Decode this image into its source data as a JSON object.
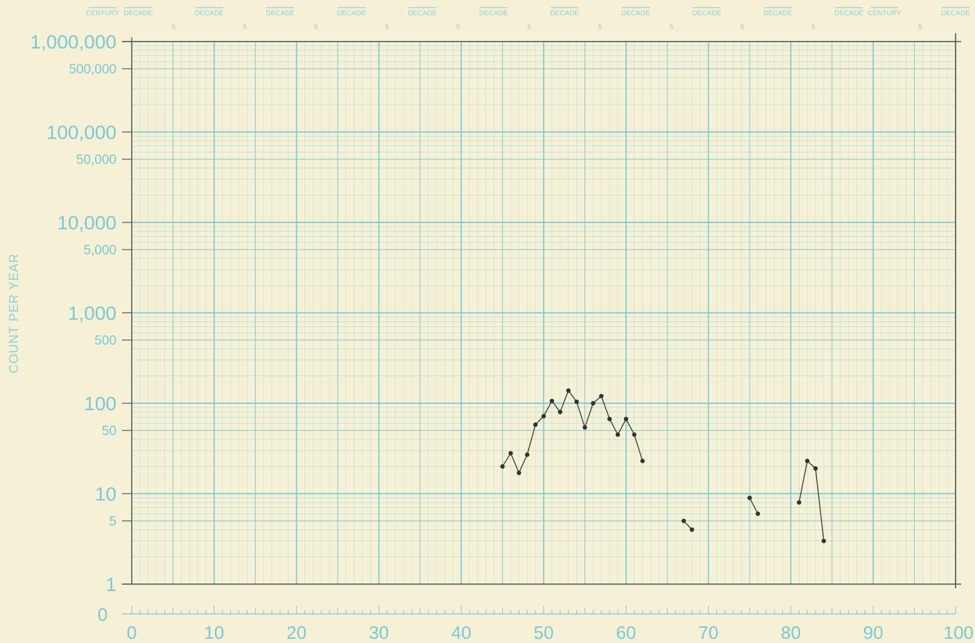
{
  "chart_data": {
    "type": "line",
    "title": "",
    "xlabel": "",
    "ylabel": "COUNT PER YEAR",
    "y_scale": "log",
    "xlim": [
      0,
      100
    ],
    "ylim": [
      1,
      1000000
    ],
    "grid": true,
    "x_ticks": [
      "0",
      "10",
      "20",
      "30",
      "40",
      "50",
      "60",
      "70",
      "80",
      "90",
      "100"
    ],
    "y_ticks": [
      "1,000,000",
      "500,000",
      "100,000",
      "50,000",
      "10,000",
      "5,000",
      "1,000",
      "500",
      "100",
      "50",
      "10",
      "5",
      "1"
    ],
    "zero_label": "0",
    "top_labels": [
      "CENTURY",
      "DECADE",
      "5",
      "DECADE",
      "5",
      "DECADE",
      "5",
      "DECADE",
      "5",
      "DECADE",
      "5",
      "DECADE",
      "5",
      "DECADE",
      "5",
      "DECADE",
      "5",
      "DECADE",
      "5",
      "DECADE",
      "5",
      "DECADE",
      "CENTURY",
      "5",
      "DECADE"
    ],
    "segments": [
      {
        "x": [
          45,
          46,
          47,
          48,
          49,
          50,
          51,
          52,
          53,
          54,
          55,
          56,
          57,
          58,
          59,
          60,
          61,
          62
        ],
        "y": [
          20,
          28,
          17,
          27,
          58,
          72,
          106,
          80,
          138,
          104,
          54,
          100,
          120,
          67,
          45,
          67,
          45,
          23
        ]
      },
      {
        "x": [
          67,
          68
        ],
        "y": [
          5,
          4
        ]
      },
      {
        "x": [
          75,
          76
        ],
        "y": [
          9,
          6
        ]
      },
      {
        "x": [
          81,
          82,
          83,
          84
        ],
        "y": [
          8,
          23,
          19,
          3
        ]
      }
    ],
    "colors": {
      "paper": "#f6f1d6",
      "grid": "#7cc7d4",
      "data": "#333333"
    }
  }
}
